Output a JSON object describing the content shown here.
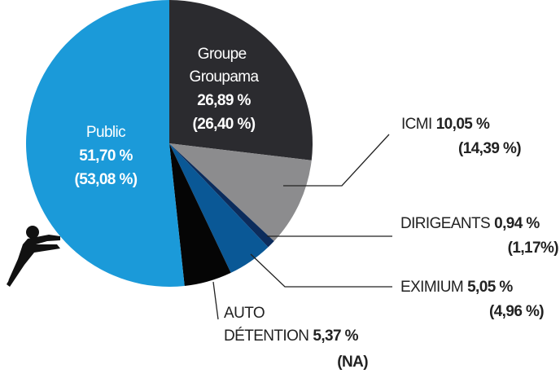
{
  "chart_data": {
    "type": "pie",
    "categories": [
      "Groupe Groupama",
      "ICMI",
      "DIRIGEANTS",
      "EXIMIUM",
      "AUTO DÉTENTION",
      "Public"
    ],
    "values": [
      26.89,
      10.05,
      0.94,
      5.05,
      5.37,
      51.7
    ],
    "value_labels": [
      "26,89 %",
      "10,05 %",
      "0,94 %",
      "5,05 %",
      "5,37 %",
      "51,70 %"
    ],
    "previous_labels": [
      "(26,40 %)",
      "(14,39 %)",
      "(1,17%)",
      "(4,96 %)",
      "(NA)",
      "(53,08 %)"
    ],
    "colors": [
      "#2b2b2f",
      "#8c8c8e",
      "#0c2c5c",
      "#0a5896",
      "#050505",
      "#1b9ad9"
    ]
  }
}
